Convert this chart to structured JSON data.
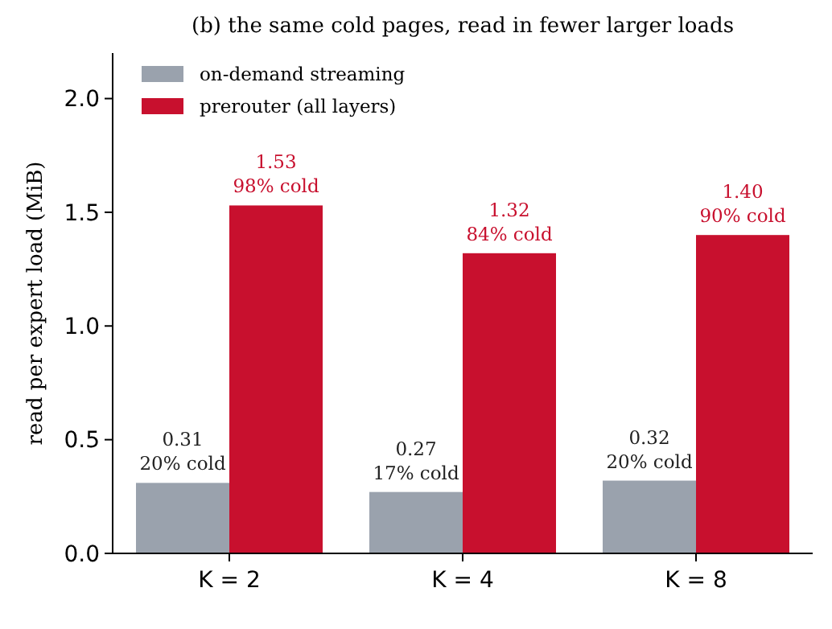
{
  "chart_data": {
    "type": "bar",
    "title": "(b) the same cold pages, read in fewer larger loads",
    "ylabel": "read per expert load (MiB)",
    "categories": [
      "K = 2",
      "K = 4",
      "K = 8"
    ],
    "series": [
      {
        "name": "on-demand streaming",
        "color": "#9aa2ad",
        "values": [
          0.31,
          0.27,
          0.32
        ],
        "value_labels": [
          "0.31\n20% cold",
          "0.27\n17% cold",
          "0.32\n20% cold"
        ]
      },
      {
        "name": "prerouter (all layers)",
        "color": "#c8102e",
        "values": [
          1.53,
          1.32,
          1.4
        ],
        "value_labels": [
          "1.53\n98% cold",
          "1.32\n84% cold",
          "1.40\n90% cold"
        ]
      }
    ],
    "ylim": [
      0,
      2.2
    ],
    "yticks": [
      {
        "value": 0,
        "label": "0.0"
      },
      {
        "value": 0.5,
        "label": "0.5"
      },
      {
        "value": 1,
        "label": "1.0"
      },
      {
        "value": 1.5,
        "label": "1.5"
      },
      {
        "value": 2,
        "label": "2.0"
      }
    ],
    "legend": "top left",
    "grid": false
  }
}
